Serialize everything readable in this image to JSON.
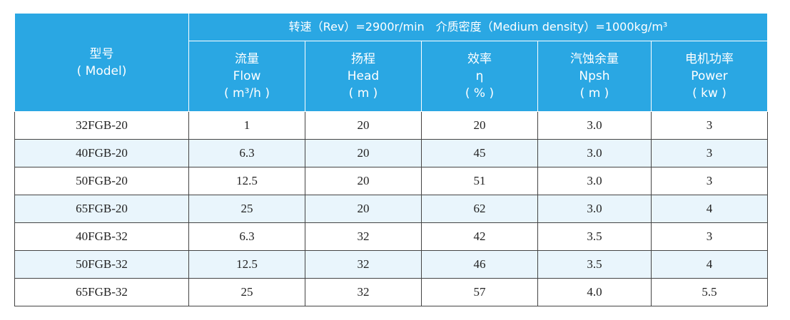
{
  "header": {
    "model_cn": "型号",
    "model_en": "( Model)",
    "spec": "转速（Rev）=2900r/min　介质密度（Medium density）=1000kg/m³",
    "columns": [
      {
        "cn": "流量",
        "en": "Flow",
        "unit": "( m³/h )"
      },
      {
        "cn": "扬程",
        "en": "Head",
        "unit": "( m )"
      },
      {
        "cn": "效率",
        "en": "η",
        "unit": "( % )"
      },
      {
        "cn": "汽蚀余量",
        "en": "Npsh",
        "unit": "( m )"
      },
      {
        "cn": "电机功率",
        "en": "Power",
        "unit": "( kw )"
      }
    ]
  },
  "table": {
    "rows": [
      [
        "32FGB-20",
        "1",
        "20",
        "20",
        "3.0",
        "3"
      ],
      [
        "40FGB-20",
        "6.3",
        "20",
        "45",
        "3.0",
        "3"
      ],
      [
        "50FGB-20",
        "12.5",
        "20",
        "51",
        "3.0",
        "3"
      ],
      [
        "65FGB-20",
        "25",
        "20",
        "62",
        "3.0",
        "4"
      ],
      [
        "40FGB-32",
        "6.3",
        "32",
        "42",
        "3.5",
        "3"
      ],
      [
        "50FGB-32",
        "12.5",
        "32",
        "46",
        "3.5",
        "4"
      ],
      [
        "65FGB-32",
        "25",
        "32",
        "57",
        "4.0",
        "5.5"
      ]
    ]
  }
}
